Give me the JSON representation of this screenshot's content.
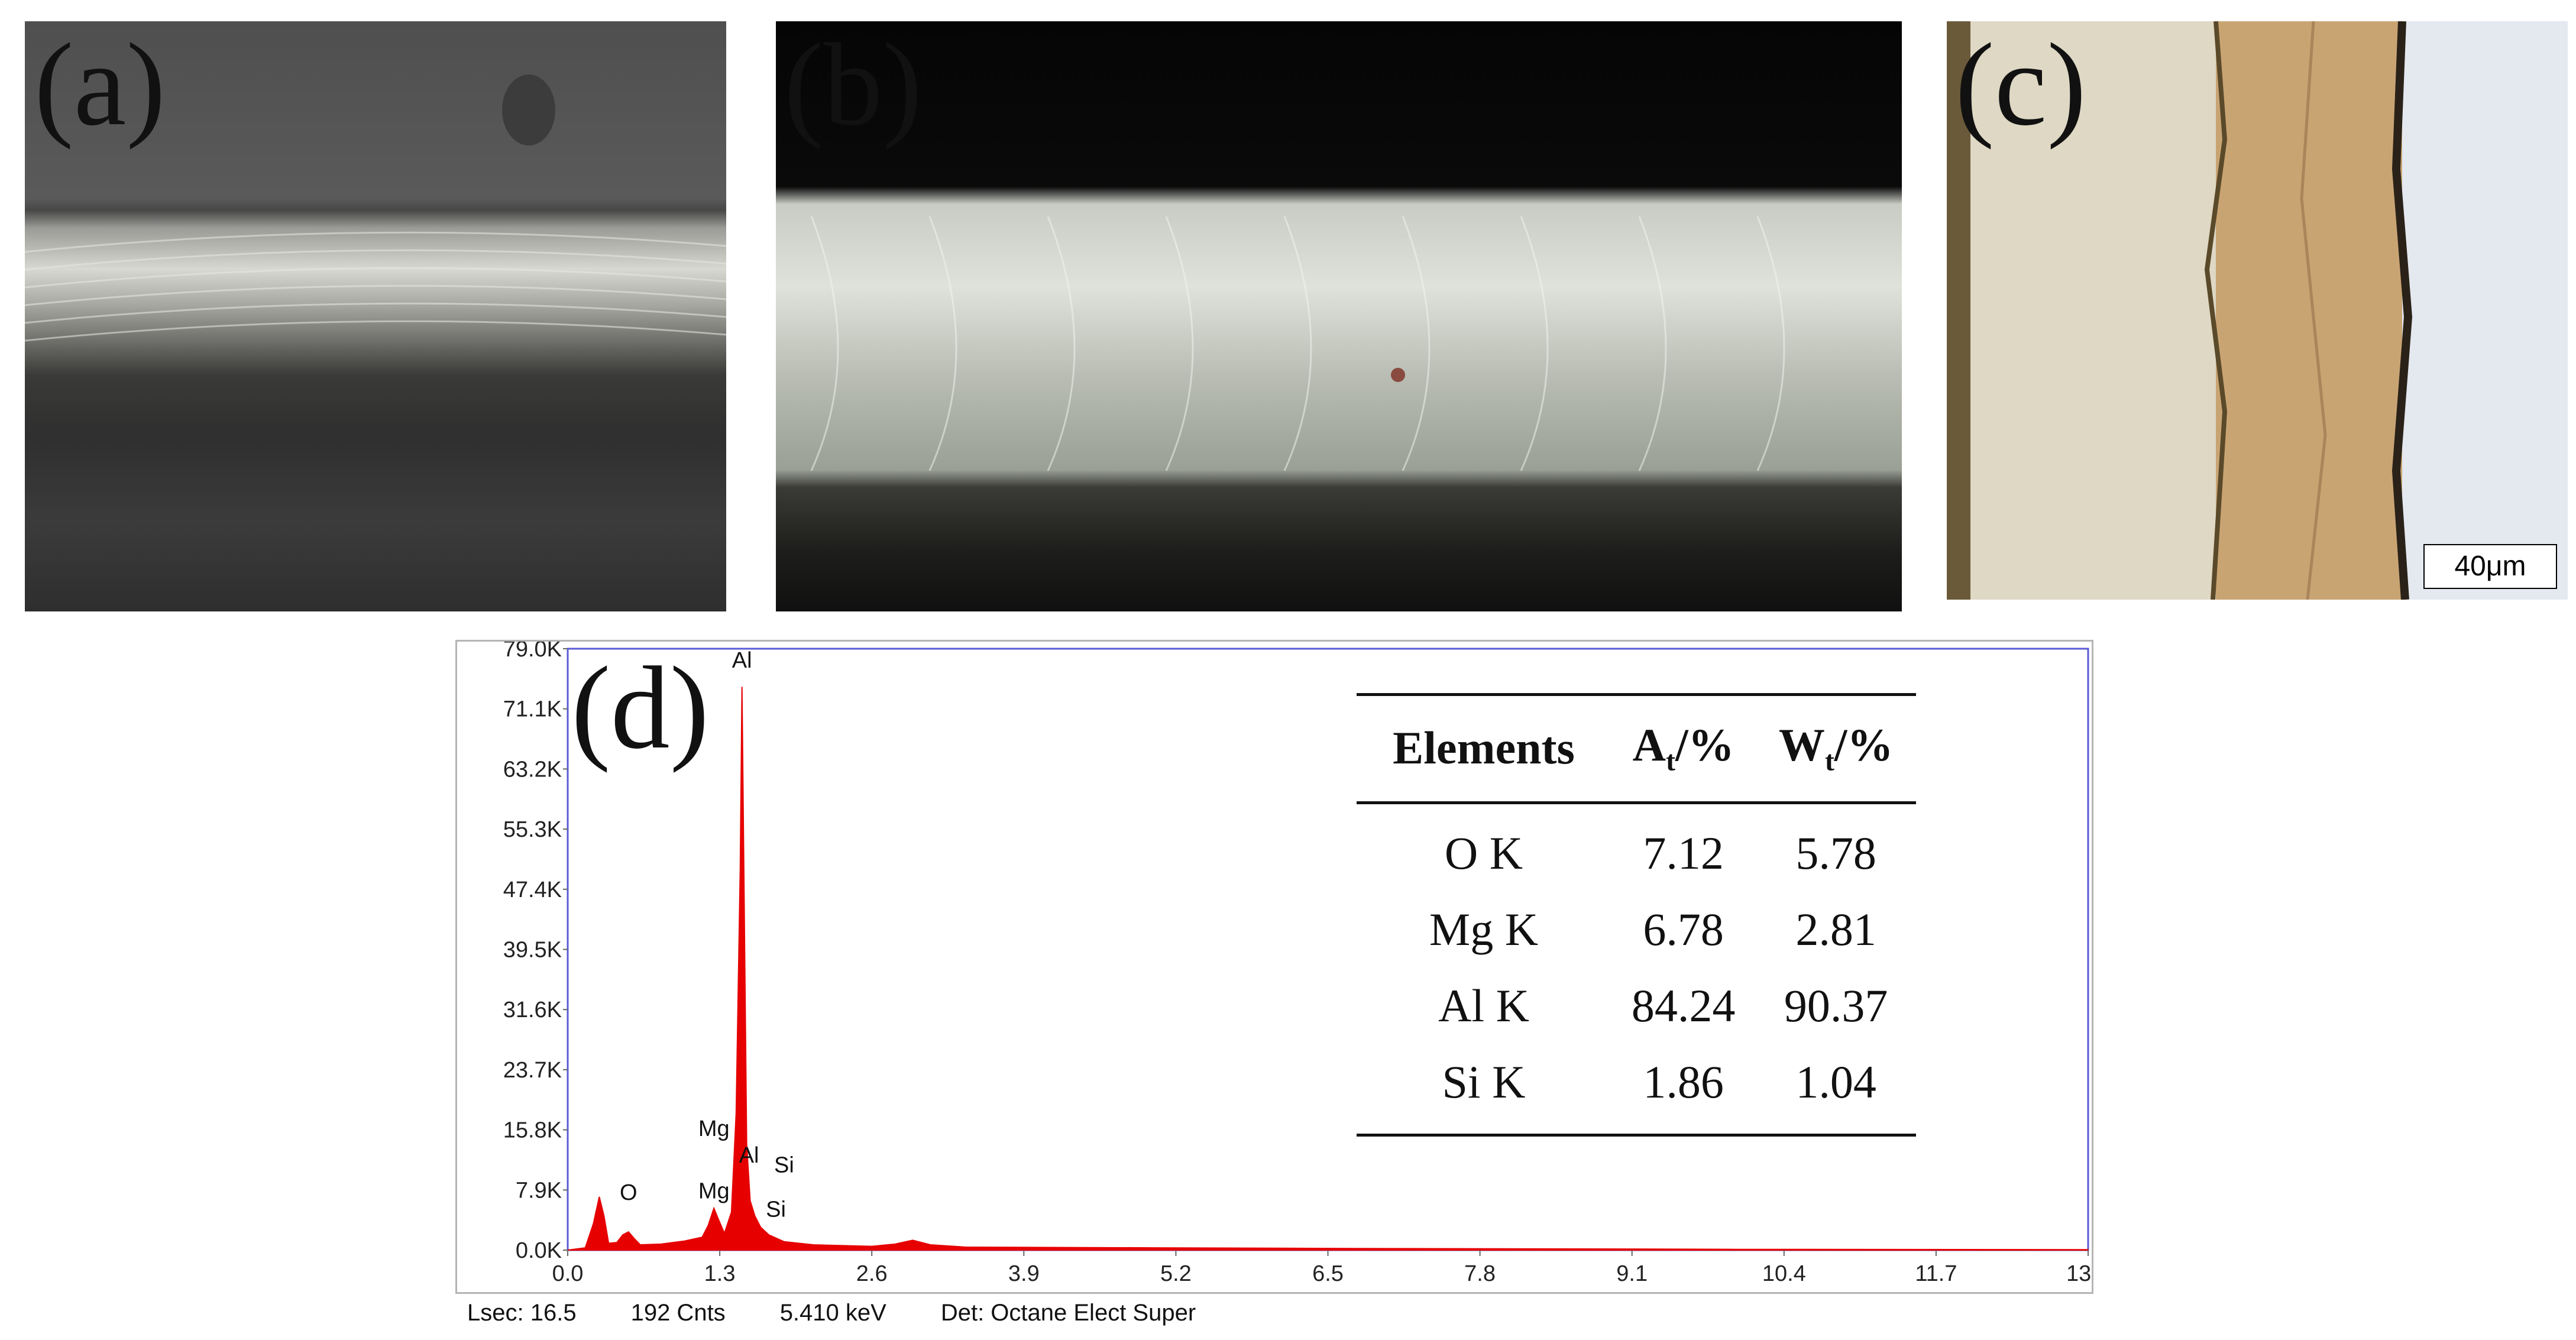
{
  "panels": {
    "a": {
      "label": "(a)"
    },
    "b": {
      "label": "(b)"
    },
    "c": {
      "label": "(c)",
      "scale_bar": "40μm"
    },
    "d": {
      "label": "(d)"
    }
  },
  "chart_data": {
    "type": "area",
    "x_ticks": [
      "0.0",
      "1.3",
      "2.6",
      "3.9",
      "5.2",
      "6.5",
      "7.8",
      "9.1",
      "10.4",
      "11.7",
      "13.0"
    ],
    "y_ticks": [
      "0.0K",
      "7.9K",
      "15.8K",
      "23.7K",
      "31.6K",
      "39.5K",
      "47.4K",
      "55.3K",
      "63.2K",
      "71.1K",
      "79.0K"
    ],
    "xlim": [
      0,
      13.0
    ],
    "ylim": [
      0,
      79000
    ],
    "color": "#e60000",
    "spectrum": [
      [
        0.0,
        0
      ],
      [
        0.15,
        300
      ],
      [
        0.22,
        3500
      ],
      [
        0.27,
        7000
      ],
      [
        0.31,
        4500
      ],
      [
        0.35,
        900
      ],
      [
        0.42,
        1000
      ],
      [
        0.47,
        2000
      ],
      [
        0.52,
        2400
      ],
      [
        0.57,
        1500
      ],
      [
        0.62,
        700
      ],
      [
        0.8,
        800
      ],
      [
        1.0,
        1200
      ],
      [
        1.15,
        1700
      ],
      [
        1.2,
        3200
      ],
      [
        1.25,
        5500
      ],
      [
        1.29,
        4000
      ],
      [
        1.34,
        2200
      ],
      [
        1.4,
        5000
      ],
      [
        1.44,
        18000
      ],
      [
        1.475,
        50000
      ],
      [
        1.49,
        74000
      ],
      [
        1.505,
        52000
      ],
      [
        1.53,
        14000
      ],
      [
        1.56,
        6500
      ],
      [
        1.6,
        4500
      ],
      [
        1.65,
        3000
      ],
      [
        1.72,
        2000
      ],
      [
        1.85,
        1100
      ],
      [
        2.1,
        700
      ],
      [
        2.6,
        500
      ],
      [
        2.8,
        800
      ],
      [
        2.95,
        1300
      ],
      [
        3.1,
        700
      ],
      [
        3.4,
        400
      ],
      [
        5.0,
        300
      ],
      [
        7.0,
        200
      ],
      [
        9.0,
        150
      ],
      [
        10.0,
        100
      ],
      [
        13.0,
        60
      ]
    ],
    "peak_labels": [
      {
        "text": "Al",
        "x": 1.49,
        "y": 76500
      },
      {
        "text": "Mg",
        "x": 1.25,
        "y": 15000
      },
      {
        "text": "Al",
        "x": 1.55,
        "y": 11500
      },
      {
        "text": "Si",
        "x": 1.85,
        "y": 10200
      },
      {
        "text": "Mg",
        "x": 1.25,
        "y": 6800
      },
      {
        "text": "O",
        "x": 0.52,
        "y": 6600
      },
      {
        "text": "Si",
        "x": 1.78,
        "y": 4400
      }
    ]
  },
  "table": {
    "headers": {
      "elements": "Elements",
      "at_main": "A",
      "at_sub": "t",
      "at_tail": "/%",
      "wt_main": "W",
      "wt_sub": "t",
      "wt_tail": "/%"
    },
    "rows": [
      {
        "element": "O K",
        "at": "7.12",
        "wt": "5.78"
      },
      {
        "element": "Mg K",
        "at": "6.78",
        "wt": "2.81"
      },
      {
        "element": "Al K",
        "at": "84.24",
        "wt": "90.37"
      },
      {
        "element": "Si K",
        "at": "1.86",
        "wt": "1.04"
      }
    ]
  },
  "footer": {
    "lsec": "Lsec: 16.5",
    "cnts": "192 Cnts",
    "kev": "5.410 keV",
    "det": "Det: Octane Elect Super"
  }
}
